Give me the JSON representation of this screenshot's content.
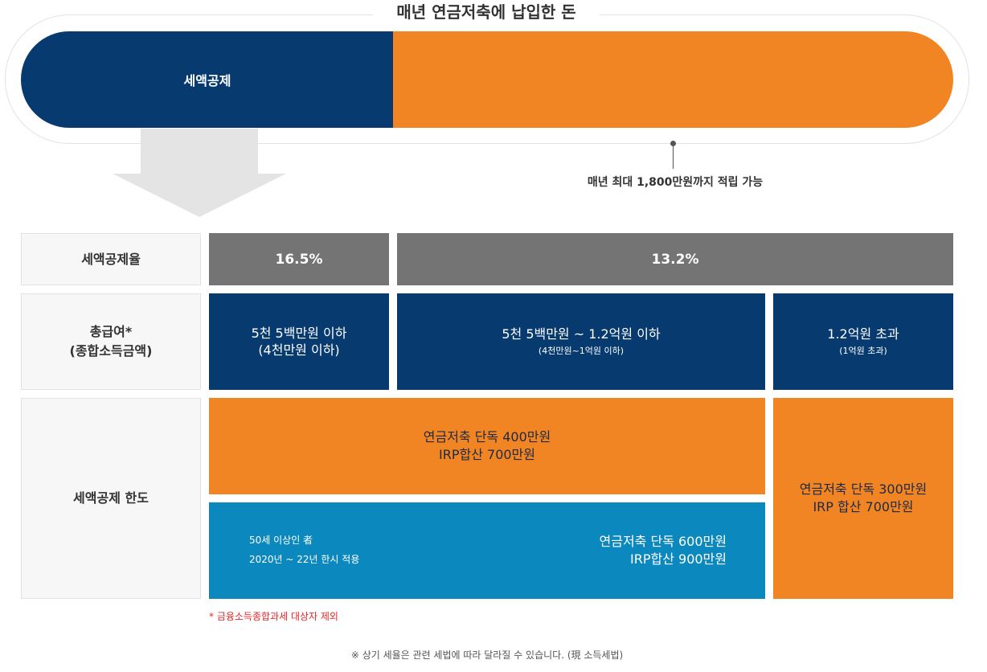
{
  "header": {
    "title": "매년 연금저축에 납입한 돈",
    "bar_label": "세액공제",
    "limit_note": "매년 최대 1,800만원까지 적립 가능"
  },
  "rows": {
    "rate_label": "세액공제율",
    "income_label_line1": "총급여*",
    "income_label_line2": "(종합소득금액)",
    "limit_label": "세액공제 한도"
  },
  "rates": {
    "low": "16.5%",
    "high": "13.2%"
  },
  "income_brackets": [
    {
      "main_line1": "5천 5백만원 이하",
      "main_line2": "(4천만원 이하)",
      "sub": ""
    },
    {
      "main_line1": "5천 5백만원 ~ 1.2억원 이하",
      "main_line2": "",
      "sub": "(4천만원~1억원 이하)"
    },
    {
      "main_line1": "1.2억원 초과",
      "main_line2": "",
      "sub": "(1억원 초과)"
    }
  ],
  "limits": {
    "standard_line1": "연금저축 단독 400만원",
    "standard_line2": "IRP합산 700만원",
    "senior_note_line1": "50세 이상인 者",
    "senior_note_line2": "2020년 ~ 22년 한시 적용",
    "senior_line1": "연금저축 단독 600만원",
    "senior_line2": "IRP합산 900만원",
    "high_line1": "연금저축 단독 300만원",
    "high_line2": "IRP 합산 700만원"
  },
  "footnote": "* 금융소득종합과세 대상자 제외",
  "disclaimer": "※ 상기 세율은 관련 세법에 따라 달라질 수 있습니다. (現 소득세법)",
  "colors": {
    "navy": "#073a6f",
    "orange": "#f28523",
    "gray": "#747474",
    "blue": "#0b88be",
    "red_note": "#e52a2a"
  }
}
